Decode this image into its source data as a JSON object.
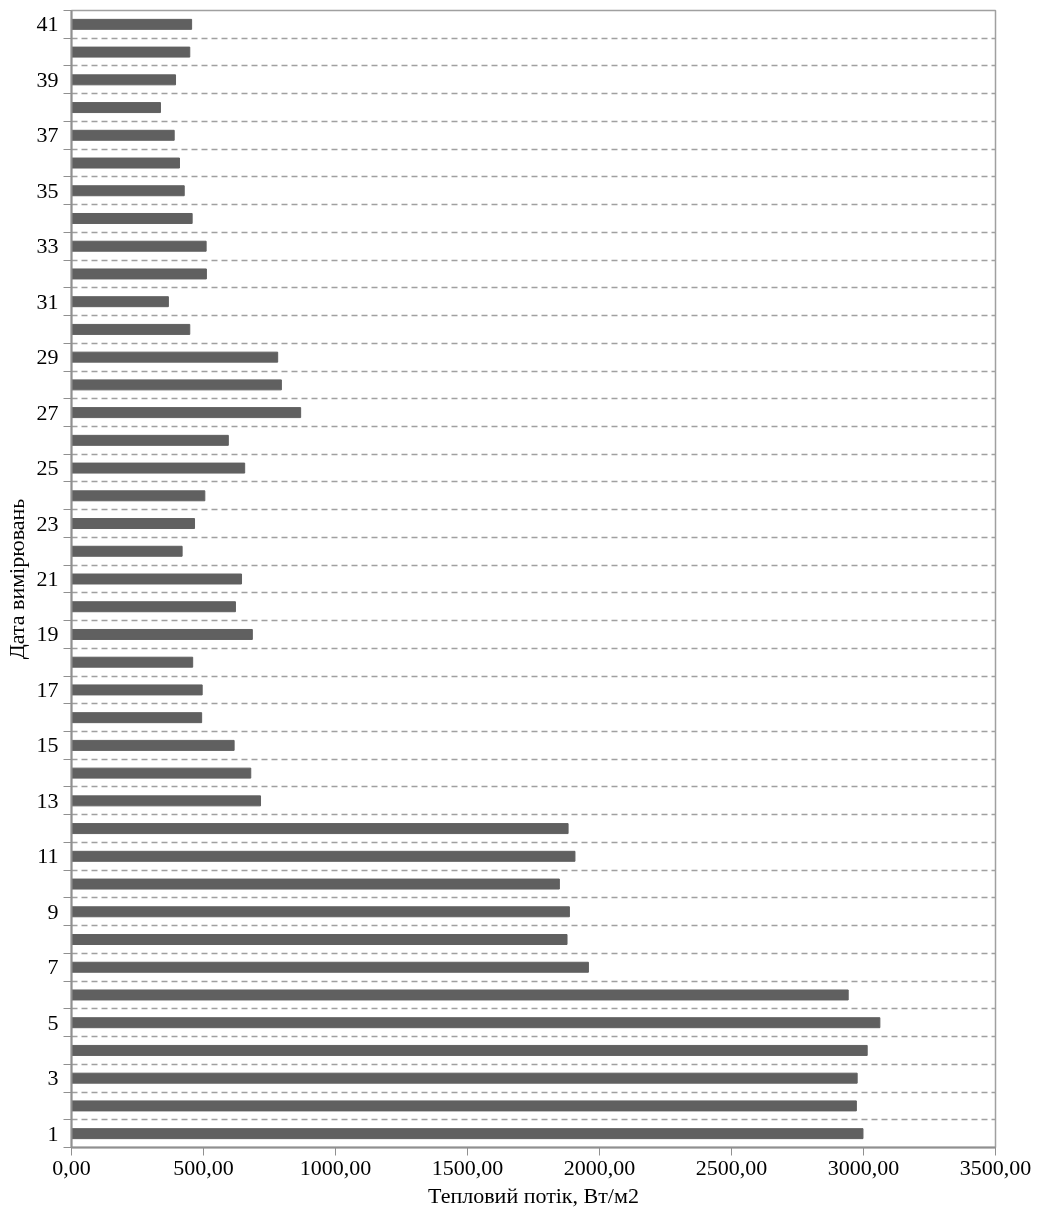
{
  "chart_data": {
    "type": "bar",
    "orientation": "horizontal",
    "xlabel": "Тепловий потік, Вт/м2",
    "ylabel": "Дата вимірювань",
    "categories": [
      "41",
      null,
      "39",
      null,
      "37",
      null,
      "35",
      null,
      "33",
      null,
      "31",
      null,
      "29",
      null,
      "27",
      null,
      "25",
      null,
      "23",
      null,
      "21",
      null,
      "19",
      null,
      "17",
      null,
      "15",
      null,
      "13",
      null,
      "11",
      null,
      "9",
      null,
      "7",
      null,
      "5",
      null,
      "3",
      null,
      "1"
    ],
    "values": [
      455,
      448,
      394,
      337,
      389,
      409,
      427,
      457,
      510,
      511,
      367,
      448,
      781,
      795,
      868,
      594,
      656,
      505,
      466,
      419,
      644,
      621,
      685,
      459,
      495,
      493,
      616,
      679,
      716,
      1881,
      1907,
      1848,
      1886,
      1877,
      1958,
      2942,
      3062,
      3014,
      2976,
      2973,
      2998
    ],
    "color": "#606060",
    "xlim": [
      0,
      3500
    ],
    "xticks": [
      {
        "value": 0,
        "label": "0,00"
      },
      {
        "value": 500,
        "label": "500,00"
      },
      {
        "value": 1000,
        "label": "1000,00"
      },
      {
        "value": 1500,
        "label": "1500,00"
      },
      {
        "value": 2000,
        "label": "2000,00"
      },
      {
        "value": 2500,
        "label": "2500,00"
      },
      {
        "value": 3000,
        "label": "3000,00"
      },
      {
        "value": 3500,
        "label": "3500,00"
      }
    ],
    "grid": "y"
  }
}
